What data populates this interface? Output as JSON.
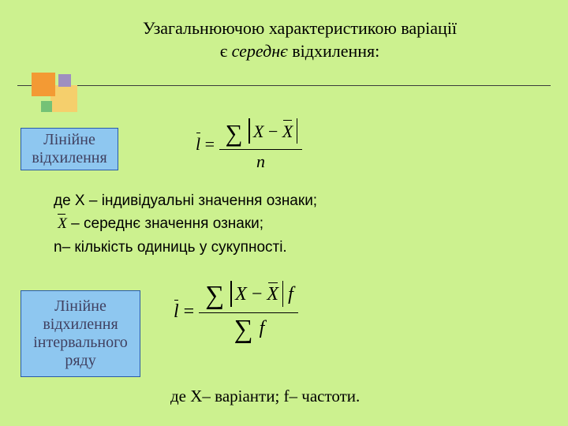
{
  "title": {
    "line1": "Узагальнюючою характеристикою варіації",
    "line2_prefix": "є ",
    "line2_italic": "середнє",
    "line2_suffix": " відхилення:"
  },
  "box1": {
    "line1": "Лінійне",
    "line2": "відхилення"
  },
  "box2": {
    "line1": "Лінійне",
    "line2": "відхилення",
    "line3": "інтервального",
    "line4": "ряду"
  },
  "formula1": {
    "lhs_var": "l",
    "eq": " = ",
    "num_inside_left": "X",
    "num_inside_minus": " − ",
    "num_inside_right": "X",
    "den": "n"
  },
  "formula2": {
    "lhs_var": "l",
    "eq": " = ",
    "num_inside_left": "X",
    "num_inside_minus": " − ",
    "num_inside_right": "X",
    "num_after": " f",
    "den_after": "f"
  },
  "legend": {
    "l1_pre": "де Х  – ",
    "l1_rest": "індивідуальні значення ознаки;",
    "l2_rest": "  – середнє значення ознаки;",
    "l3": "n– кількість одиниць у сукупності."
  },
  "foot": {
    "pre": "де    ",
    "x": "Х– варіанти;",
    "gap": "   ",
    "f": "f– частоти."
  },
  "colors": {
    "bg": "#ccf18f",
    "box_fill": "#8ec7f0",
    "box_border": "#2a5aa8",
    "sq_orange": "#f39a34",
    "sq_yellow": "#f5cf6c",
    "sq_purple": "#9e8fc0",
    "sq_green": "#74c276"
  }
}
